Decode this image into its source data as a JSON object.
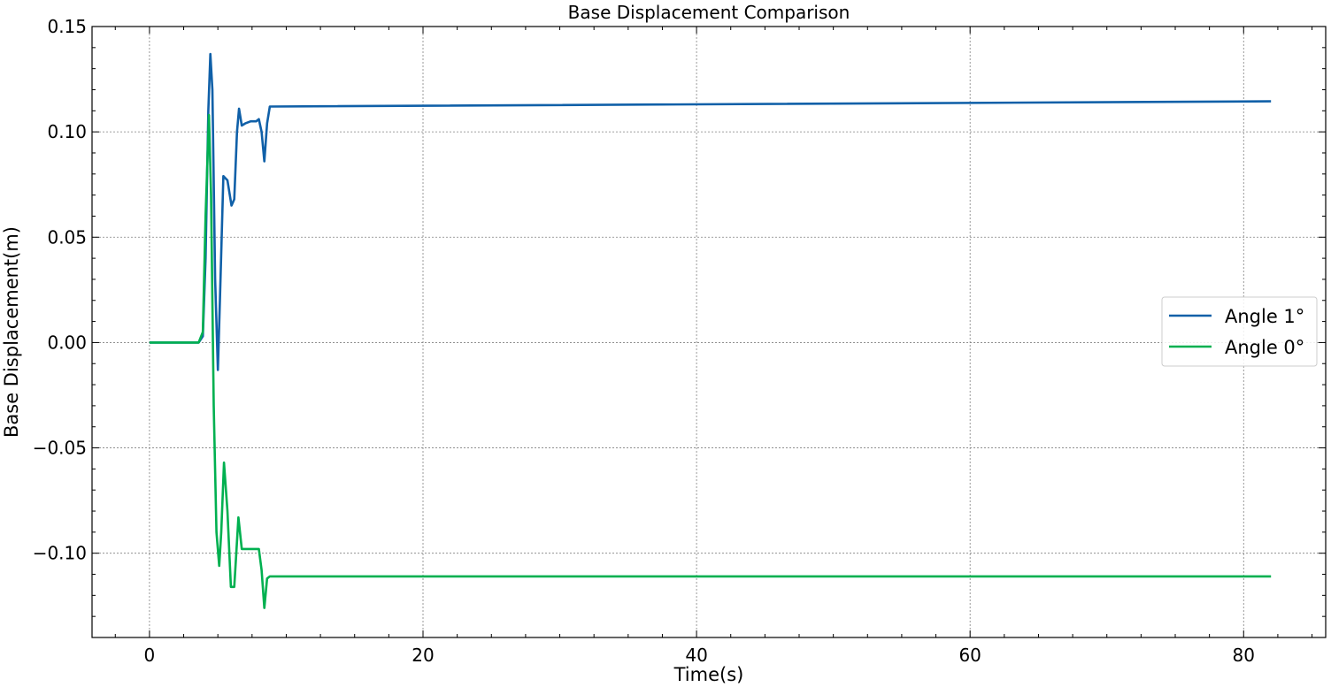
{
  "chart_data": {
    "type": "line",
    "title": "Base Displacement Comparison",
    "xlabel": "Time(s)",
    "ylabel": "Base Displacement(m)",
    "xlim": [
      -4.2,
      86.0
    ],
    "ylim": [
      -0.14,
      0.15
    ],
    "xticks": [
      0,
      20,
      40,
      60,
      80
    ],
    "yticks": [
      0.15,
      0.1,
      0.05,
      0.0,
      -0.05,
      -0.1
    ],
    "xtick_labels": [
      "0",
      "20",
      "40",
      "60",
      "80"
    ],
    "ytick_labels": [
      "0.15",
      "0.10",
      "0.05",
      "0.00",
      "−0.05",
      "−0.10"
    ],
    "grid": true,
    "legend_position": "center-right",
    "series": [
      {
        "name": "Angle 1°",
        "color": "#1060a8",
        "points": [
          [
            0,
            0
          ],
          [
            3.6,
            0
          ],
          [
            3.9,
            0.003
          ],
          [
            4.1,
            0.04
          ],
          [
            4.3,
            0.11
          ],
          [
            4.45,
            0.137
          ],
          [
            4.6,
            0.12
          ],
          [
            4.8,
            0.03
          ],
          [
            5.0,
            -0.013
          ],
          [
            5.15,
            0.02
          ],
          [
            5.4,
            0.079
          ],
          [
            5.7,
            0.077
          ],
          [
            6.0,
            0.065
          ],
          [
            6.2,
            0.068
          ],
          [
            6.4,
            0.1
          ],
          [
            6.55,
            0.111
          ],
          [
            6.75,
            0.103
          ],
          [
            7.0,
            0.104
          ],
          [
            7.4,
            0.105
          ],
          [
            7.8,
            0.105
          ],
          [
            8.0,
            0.106
          ],
          [
            8.2,
            0.1
          ],
          [
            8.4,
            0.086
          ],
          [
            8.6,
            0.104
          ],
          [
            8.8,
            0.112
          ],
          [
            82,
            0.1145
          ]
        ]
      },
      {
        "name": "Angle 0°",
        "color": "#00b050",
        "points": [
          [
            0,
            0
          ],
          [
            3.6,
            0
          ],
          [
            3.9,
            0.005
          ],
          [
            4.1,
            0.06
          ],
          [
            4.35,
            0.108
          ],
          [
            4.5,
            0.07
          ],
          [
            4.7,
            -0.03
          ],
          [
            4.9,
            -0.09
          ],
          [
            5.1,
            -0.106
          ],
          [
            5.25,
            -0.09
          ],
          [
            5.45,
            -0.057
          ],
          [
            5.7,
            -0.08
          ],
          [
            5.95,
            -0.116
          ],
          [
            6.2,
            -0.116
          ],
          [
            6.35,
            -0.1
          ],
          [
            6.5,
            -0.083
          ],
          [
            6.75,
            -0.098
          ],
          [
            7.1,
            -0.098
          ],
          [
            7.6,
            -0.098
          ],
          [
            8.0,
            -0.098
          ],
          [
            8.2,
            -0.108
          ],
          [
            8.4,
            -0.126
          ],
          [
            8.6,
            -0.112
          ],
          [
            8.8,
            -0.111
          ],
          [
            82,
            -0.111
          ]
        ]
      }
    ]
  }
}
